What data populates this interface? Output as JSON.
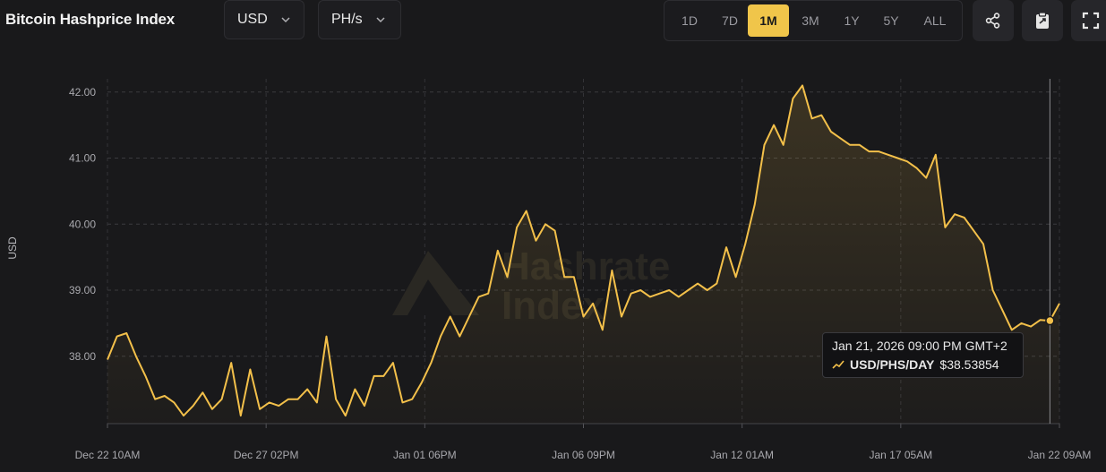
{
  "header": {
    "title": "Bitcoin Hashprice Index",
    "currency": "USD",
    "unit": "PH/s",
    "ranges": [
      "1D",
      "7D",
      "1M",
      "3M",
      "1Y",
      "5Y",
      "ALL"
    ],
    "active_range": "1M"
  },
  "icons": {
    "share": "share-icon",
    "clipboard": "clipboard-icon",
    "fullscreen": "fullscreen-icon",
    "dropdown": "chevron-down-icon"
  },
  "watermark": "Hashrate Index",
  "colors": {
    "line": "#f3c04a",
    "background": "#19191b",
    "active_range": "#f0c54a"
  },
  "tooltip": {
    "date": "Jan 21, 2026 09:00 PM GMT+2",
    "series_label": "USD/PHS/DAY",
    "value": "$38.53854"
  },
  "chart_data": {
    "type": "area",
    "ylabel": "USD",
    "xlabel": "",
    "ylim": [
      36.98,
      42.2
    ],
    "yticks": [
      "42.00",
      "41.00",
      "40.00",
      "39.00",
      "38.00"
    ],
    "xticks": [
      "Dec 22 10AM",
      "Dec 27 02PM",
      "Jan 01 06PM",
      "Jan 06 09PM",
      "Jan 12 01AM",
      "Jan 17 05AM",
      "Jan 22 09AM"
    ],
    "grid": true,
    "series": [
      {
        "name": "USD/PHS/DAY",
        "x_index": [
          0,
          2,
          4,
          6,
          8,
          10,
          12,
          14,
          16,
          18,
          20,
          22,
          24,
          26,
          28,
          30,
          32,
          34,
          36,
          38,
          40,
          42,
          44,
          46,
          48,
          50,
          52,
          54,
          56,
          58,
          60,
          62,
          64,
          66,
          68,
          70,
          72,
          74,
          76,
          78,
          80,
          82,
          84,
          86,
          88,
          90,
          92,
          94,
          96,
          98,
          100,
          102,
          104,
          106,
          108,
          110,
          112,
          114,
          116,
          118,
          120,
          122,
          124,
          126,
          128,
          130,
          132,
          134,
          136,
          138,
          140,
          142,
          144,
          146,
          148,
          150,
          152,
          154,
          156,
          158,
          160,
          162,
          164,
          166,
          168,
          170,
          172,
          174,
          176,
          178,
          180,
          182,
          184,
          186,
          188,
          190,
          192,
          194,
          196,
          198,
          200
        ],
        "values": [
          37.95,
          38.3,
          38.35,
          38.0,
          37.7,
          37.35,
          37.4,
          37.3,
          37.1,
          37.25,
          37.45,
          37.2,
          37.35,
          37.9,
          37.1,
          37.8,
          37.2,
          37.3,
          37.25,
          37.35,
          37.35,
          37.5,
          37.3,
          38.3,
          37.35,
          37.1,
          37.5,
          37.25,
          37.7,
          37.7,
          37.9,
          37.3,
          37.35,
          37.6,
          37.9,
          38.3,
          38.6,
          38.3,
          38.6,
          38.9,
          38.95,
          39.6,
          39.2,
          39.95,
          40.2,
          39.75,
          40.0,
          39.9,
          39.2,
          39.2,
          38.6,
          38.8,
          38.4,
          39.3,
          38.6,
          38.95,
          39.0,
          38.9,
          38.95,
          39.0,
          38.9,
          39.0,
          39.1,
          39.0,
          39.1,
          39.65,
          39.2,
          39.7,
          40.3,
          41.2,
          41.5,
          41.2,
          41.9,
          42.1,
          41.6,
          41.65,
          41.4,
          41.3,
          41.2,
          41.2,
          41.1,
          41.1,
          41.05,
          41.0,
          40.95,
          40.85,
          40.7,
          41.05,
          39.95,
          40.15,
          40.1,
          39.9,
          39.7,
          39.0,
          38.7,
          38.4,
          38.5,
          38.45,
          38.55,
          38.53854,
          38.8
        ]
      }
    ]
  }
}
